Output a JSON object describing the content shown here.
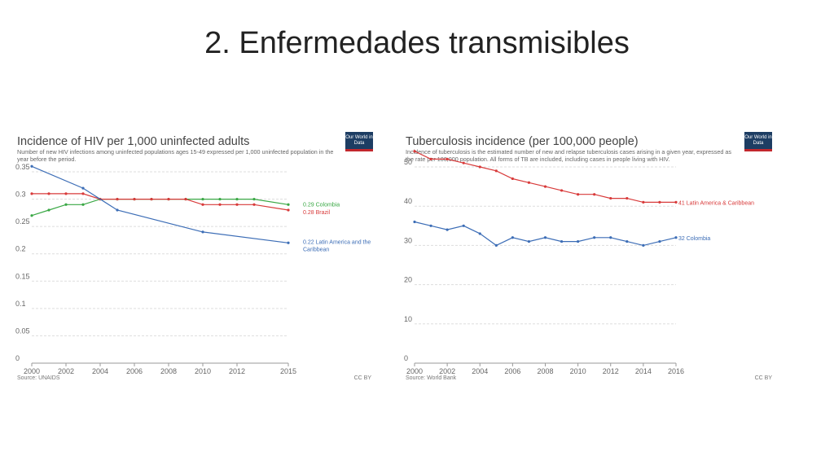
{
  "slide": {
    "title": "2. Enfermedades transmisibles"
  },
  "logo_text": "Our World in Data",
  "chart_data": [
    {
      "type": "line",
      "title": "Incidence of HIV per 1,000 uninfected adults",
      "subtitle": "Number of new HIV infections among uninfected populations ages 15-49 expressed per 1,000 uninfected population in the year before the period.",
      "source": "Source: UNAIDS",
      "license": "CC BY",
      "xlim": [
        2000,
        2015
      ],
      "ylim": [
        0,
        0.35
      ],
      "xticks": [
        2000,
        2002,
        2004,
        2006,
        2008,
        2010,
        2012,
        2015
      ],
      "yticks": [
        0,
        0.05,
        0.1,
        0.15,
        0.2,
        0.25,
        0.3,
        0.35
      ],
      "grid": true,
      "series": [
        {
          "name": "Colombia",
          "end_label": "0.29 Colombia",
          "color": "#3aa845",
          "x": [
            2000,
            2001,
            2002,
            2003,
            2004,
            2005,
            2006,
            2007,
            2008,
            2009,
            2010,
            2011,
            2012,
            2013,
            2015
          ],
          "y": [
            0.27,
            0.28,
            0.29,
            0.29,
            0.3,
            0.3,
            0.3,
            0.3,
            0.3,
            0.3,
            0.3,
            0.3,
            0.3,
            0.3,
            0.29
          ]
        },
        {
          "name": "Brazil",
          "end_label": "0.28 Brazil",
          "color": "#d83a3a",
          "x": [
            2000,
            2001,
            2002,
            2003,
            2004,
            2005,
            2006,
            2007,
            2008,
            2009,
            2010,
            2011,
            2012,
            2013,
            2015
          ],
          "y": [
            0.31,
            0.31,
            0.31,
            0.31,
            0.3,
            0.3,
            0.3,
            0.3,
            0.3,
            0.3,
            0.29,
            0.29,
            0.29,
            0.29,
            0.28
          ]
        },
        {
          "name": "Latin America and the Caribbean",
          "end_label": "0.22 Latin America and the Caribbean",
          "color": "#3c6db6",
          "x": [
            2000,
            2003,
            2005,
            2010,
            2015
          ],
          "y": [
            0.36,
            0.32,
            0.28,
            0.24,
            0.22
          ]
        }
      ]
    },
    {
      "type": "line",
      "title": "Tuberculosis incidence (per 100,000 people)",
      "subtitle": "Incidence of tuberculosis is the estimated number of new and relapse tuberculosis cases arising in a given year, expressed as the rate per 100,000 population. All forms of TB are included, including cases in people living with HIV.",
      "source": "Source: World Bank",
      "license": "CC BY",
      "xlim": [
        2000,
        2016
      ],
      "ylim": [
        0,
        50
      ],
      "xticks": [
        2000,
        2002,
        2004,
        2006,
        2008,
        2010,
        2012,
        2014,
        2016
      ],
      "yticks": [
        0,
        10,
        20,
        30,
        40,
        50
      ],
      "grid": true,
      "series": [
        {
          "name": "Latin America & Caribbean",
          "end_label": "41 Latin America & Caribbean",
          "color": "#d83a3a",
          "x": [
            2000,
            2001,
            2002,
            2003,
            2004,
            2005,
            2006,
            2007,
            2008,
            2009,
            2010,
            2011,
            2012,
            2013,
            2014,
            2015,
            2016
          ],
          "y": [
            54,
            52,
            52,
            51,
            50,
            49,
            47,
            46,
            45,
            44,
            43,
            43,
            42,
            42,
            41,
            41,
            41
          ]
        },
        {
          "name": "Colombia",
          "end_label": "32 Colombia",
          "color": "#3c6db6",
          "x": [
            2000,
            2001,
            2002,
            2003,
            2004,
            2005,
            2006,
            2007,
            2008,
            2009,
            2010,
            2011,
            2012,
            2013,
            2014,
            2015,
            2016
          ],
          "y": [
            36,
            35,
            34,
            35,
            33,
            30,
            32,
            31,
            32,
            31,
            31,
            32,
            32,
            31,
            30,
            31,
            32
          ]
        }
      ]
    }
  ]
}
